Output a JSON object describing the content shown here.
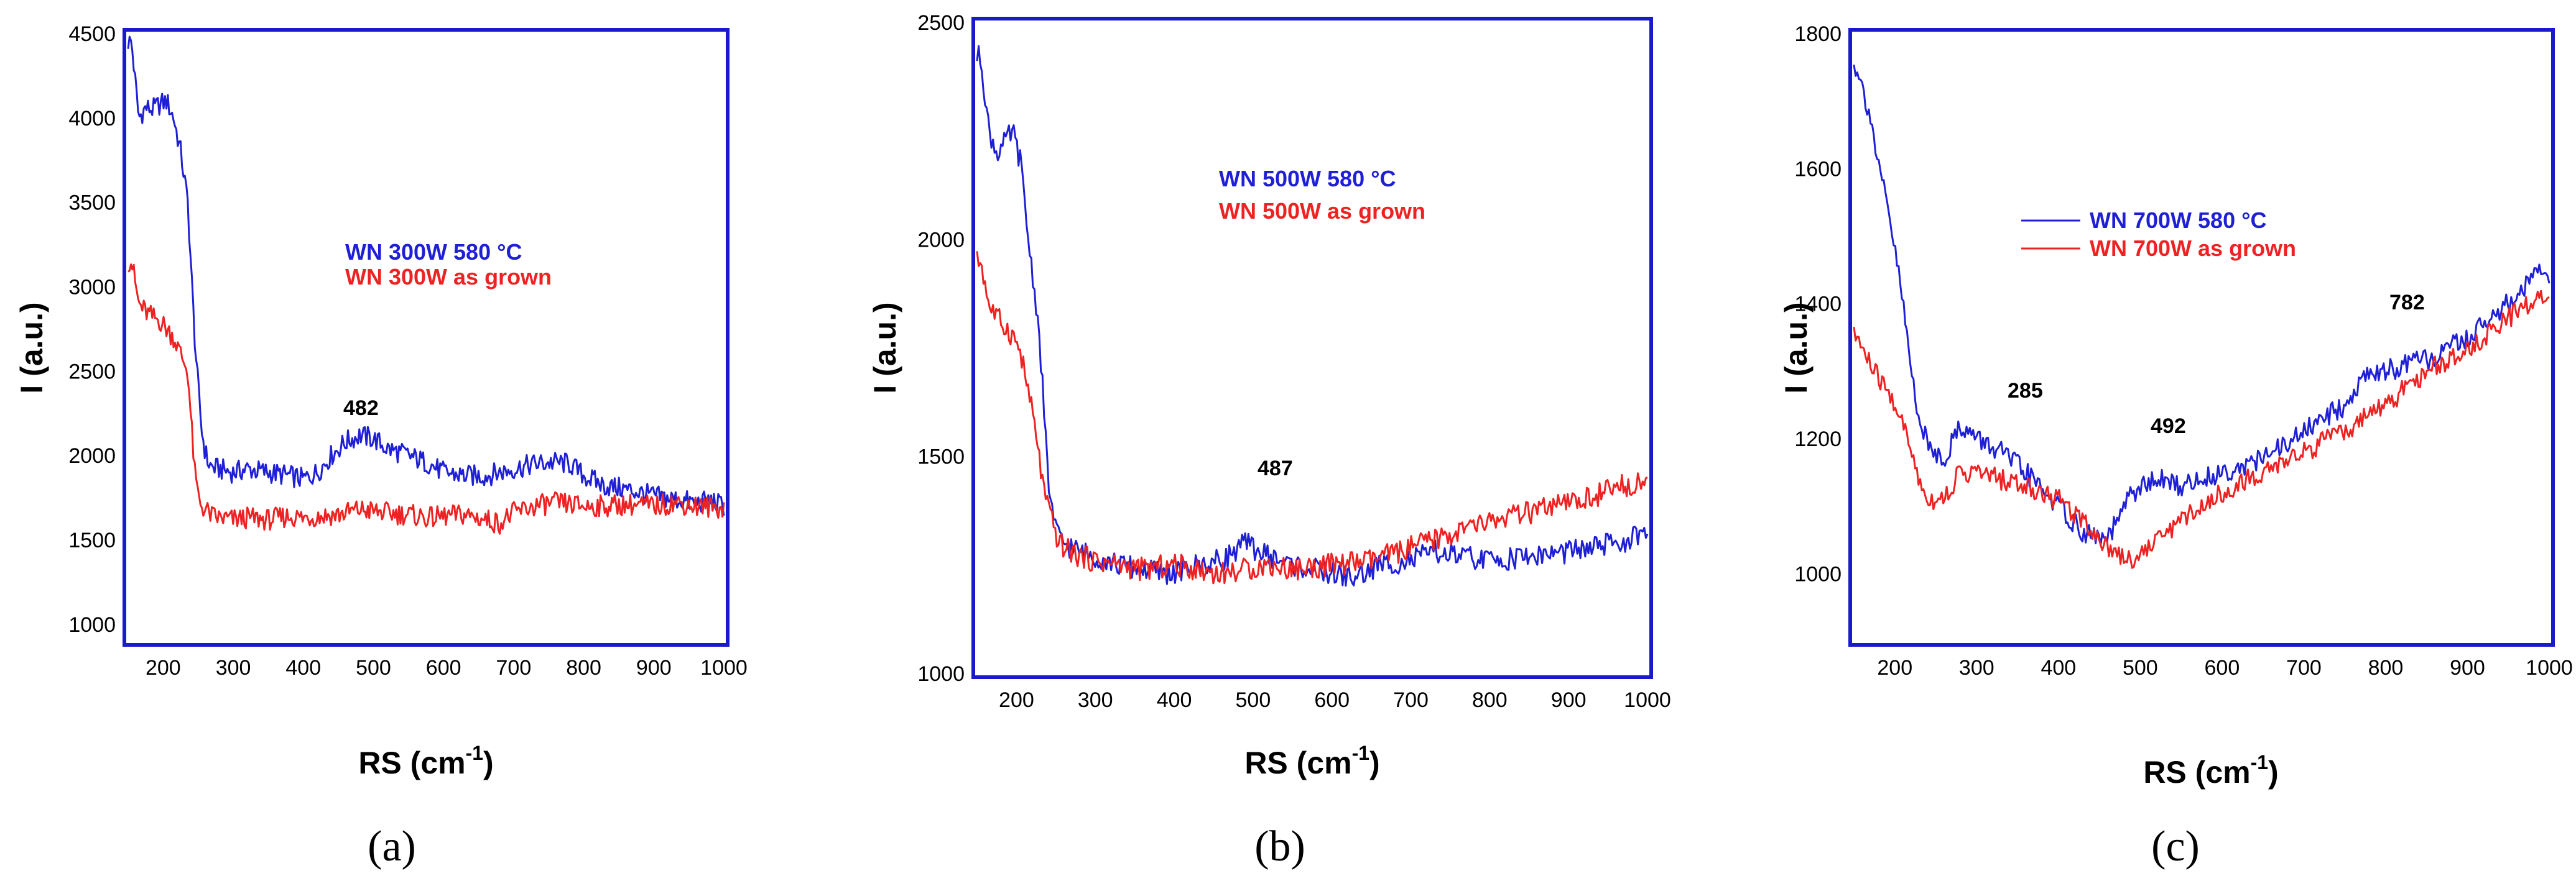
{
  "chart_data": [
    {
      "type": "line",
      "panel_label": "a",
      "ylabel": "I (a.u.)",
      "xlabel": "RS (cm-1)",
      "xlabel_base": "RS (cm",
      "xlabel_sup": "-1",
      "xlabel_end": ")",
      "xlim": [
        150,
        1000
      ],
      "ylim": [
        900,
        4500
      ],
      "xticks": [
        200,
        300,
        400,
        500,
        600,
        700,
        800,
        900,
        1000
      ],
      "yticks": [
        1000,
        1500,
        2000,
        2500,
        3000,
        3500,
        4000,
        4500
      ],
      "series": [
        {
          "name": "WN 300W 580 °C",
          "color": "#1f1fd6",
          "x": [
            155,
            165,
            175,
            185,
            195,
            205,
            215,
            225,
            235,
            240,
            245,
            250,
            255,
            260,
            265,
            270,
            280,
            300,
            320,
            350,
            380,
            400,
            420,
            440,
            460,
            480,
            500,
            520,
            550,
            580,
            600,
            630,
            660,
            700,
            730,
            760,
            780,
            800,
            830,
            860,
            900,
            930,
            960,
            980,
            1000
          ],
          "y": [
            4450,
            4000,
            4060,
            4050,
            4080,
            4100,
            4000,
            3800,
            3500,
            3100,
            2700,
            2400,
            2150,
            2020,
            1950,
            1930,
            1920,
            1900,
            1920,
            1900,
            1880,
            1860,
            1900,
            2000,
            2080,
            2120,
            2100,
            2040,
            2000,
            1950,
            1900,
            1880,
            1880,
            1920,
            1950,
            1960,
            1950,
            1880,
            1820,
            1800,
            1760,
            1740,
            1720,
            1730,
            1700
          ]
        },
        {
          "name": "WN 300W as grown",
          "color": "#ee2222",
          "x": [
            155,
            165,
            175,
            185,
            195,
            205,
            215,
            225,
            235,
            240,
            245,
            250,
            255,
            260,
            265,
            270,
            280,
            300,
            320,
            350,
            380,
            400,
            420,
            450,
            480,
            500,
            520,
            550,
            580,
            600,
            630,
            660,
            680,
            700,
            730,
            760,
            800,
            830,
            860,
            900,
            930,
            960,
            1000
          ],
          "y": [
            3150,
            2900,
            2850,
            2820,
            2800,
            2750,
            2700,
            2600,
            2500,
            2200,
            1900,
            1760,
            1700,
            1680,
            1660,
            1640,
            1630,
            1620,
            1630,
            1620,
            1640,
            1630,
            1640,
            1650,
            1680,
            1670,
            1660,
            1650,
            1630,
            1640,
            1650,
            1620,
            1600,
            1660,
            1700,
            1720,
            1700,
            1700,
            1710,
            1700,
            1720,
            1700,
            1690
          ]
        }
      ],
      "annotations": [
        {
          "text": "482",
          "x": 482
        }
      ]
    },
    {
      "type": "line",
      "panel_label": "b",
      "ylabel": "I (a.u.)",
      "xlabel": "RS (cm-1)",
      "xlabel_base": "RS (cm",
      "xlabel_sup": "-1",
      "xlabel_end": ")",
      "xlim": [
        150,
        1000
      ],
      "ylim": [
        1000,
        2500
      ],
      "xticks": [
        200,
        300,
        400,
        500,
        600,
        700,
        800,
        900,
        1000
      ],
      "yticks": [
        1000,
        1500,
        2000,
        2500
      ],
      "series": [
        {
          "name": "WN 500W 580 °C",
          "color": "#1f1fd6",
          "x": [
            155,
            165,
            175,
            185,
            195,
            205,
            215,
            225,
            230,
            235,
            240,
            245,
            250,
            255,
            260,
            270,
            280,
            300,
            330,
            360,
            400,
            430,
            460,
            490,
            520,
            550,
            600,
            630,
            660,
            700,
            730,
            760,
            800,
            850,
            900,
            930,
            960,
            1000
          ],
          "y": [
            2420,
            2250,
            2200,
            2220,
            2250,
            2180,
            2000,
            1850,
            1750,
            1600,
            1450,
            1380,
            1330,
            1310,
            1300,
            1290,
            1280,
            1270,
            1250,
            1240,
            1230,
            1250,
            1260,
            1300,
            1270,
            1250,
            1230,
            1220,
            1250,
            1260,
            1280,
            1270,
            1260,
            1270,
            1280,
            1290,
            1300,
            1320
          ]
        },
        {
          "name": "WN  500W as grown",
          "color": "#ee2222",
          "x": [
            155,
            165,
            175,
            185,
            195,
            205,
            215,
            225,
            230,
            235,
            240,
            245,
            250,
            255,
            260,
            270,
            280,
            300,
            330,
            360,
            400,
            430,
            460,
            490,
            520,
            550,
            600,
            650,
            700,
            750,
            800,
            850,
            900,
            950,
            1000
          ],
          "y": [
            1950,
            1850,
            1820,
            1800,
            1780,
            1740,
            1650,
            1550,
            1480,
            1420,
            1380,
            1350,
            1320,
            1300,
            1290,
            1280,
            1270,
            1260,
            1250,
            1240,
            1250,
            1240,
            1230,
            1240,
            1250,
            1240,
            1250,
            1260,
            1290,
            1320,
            1350,
            1370,
            1390,
            1420,
            1450
          ]
        }
      ],
      "annotations": [
        {
          "text": "487",
          "x": 487
        }
      ]
    },
    {
      "type": "line",
      "panel_label": "c",
      "ylabel": "I (a.u.)",
      "xlabel": "RS (cm-1)",
      "xlabel_base": "RS (cm",
      "xlabel_sup": "-1",
      "xlabel_end": ")",
      "xlim": [
        150,
        1000
      ],
      "ylim": [
        900,
        1800
      ],
      "xticks": [
        200,
        300,
        400,
        500,
        600,
        700,
        800,
        900,
        1000
      ],
      "yticks": [
        1000,
        1200,
        1400,
        1600,
        1800
      ],
      "series": [
        {
          "name": "WN 700W 580 °C",
          "color": "#1f1fd6",
          "x": [
            155,
            160,
            170,
            180,
            190,
            200,
            210,
            220,
            230,
            240,
            250,
            260,
            280,
            300,
            330,
            360,
            400,
            430,
            460,
            490,
            520,
            550,
            600,
            650,
            700,
            750,
            780,
            800,
            830,
            860,
            900,
            930,
            960,
            990,
            1000
          ],
          "y": [
            1750,
            1720,
            1680,
            1600,
            1550,
            1480,
            1400,
            1300,
            1230,
            1190,
            1180,
            1170,
            1220,
            1200,
            1180,
            1150,
            1100,
            1060,
            1050,
            1120,
            1140,
            1130,
            1150,
            1170,
            1210,
            1250,
            1300,
            1300,
            1310,
            1320,
            1350,
            1380,
            1410,
            1450,
            1440
          ]
        },
        {
          "name": "WN 700W as grown",
          "color": "#ee2222",
          "x": [
            155,
            165,
            175,
            185,
            195,
            205,
            215,
            225,
            235,
            245,
            255,
            265,
            280,
            300,
            330,
            360,
            400,
            430,
            460,
            490,
            520,
            550,
            600,
            650,
            700,
            750,
            800,
            850,
            900,
            950,
            1000
          ],
          "y": [
            1350,
            1320,
            1300,
            1280,
            1260,
            1240,
            1200,
            1160,
            1120,
            1110,
            1110,
            1120,
            1150,
            1150,
            1140,
            1130,
            1110,
            1080,
            1040,
            1020,
            1050,
            1080,
            1120,
            1150,
            1180,
            1210,
            1250,
            1300,
            1330,
            1380,
            1420
          ]
        }
      ],
      "annotations": [
        {
          "text": "285",
          "x": 285
        },
        {
          "text": "492",
          "x": 492
        },
        {
          "text": "782",
          "x": 782
        }
      ]
    }
  ]
}
